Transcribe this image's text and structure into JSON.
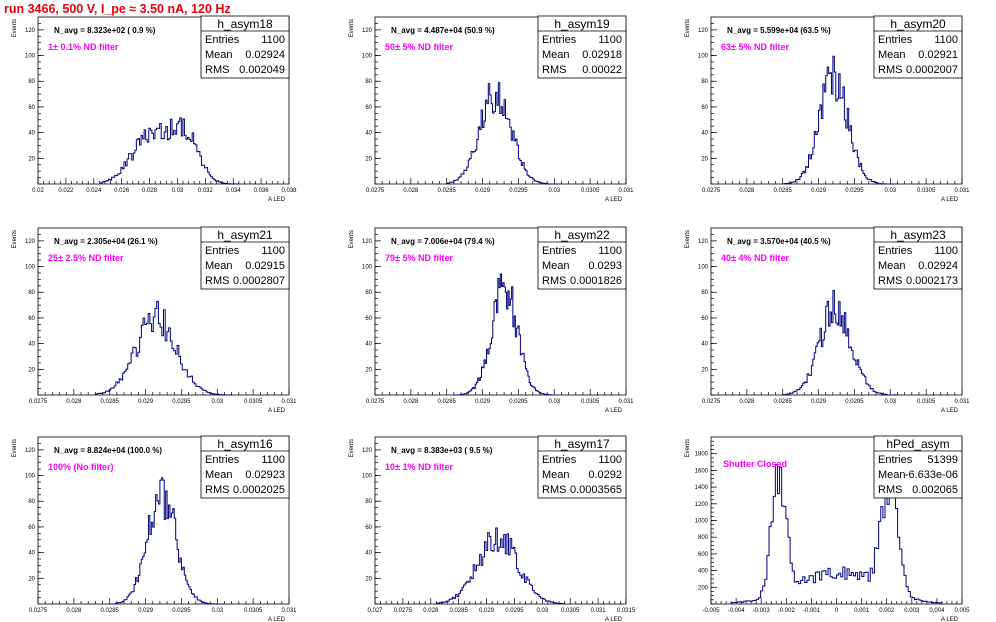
{
  "header": {
    "run_title": "run 3466,   500 V, I_pe ≈ 3.50 nA, 120 Hz"
  },
  "chart_data": [
    {
      "type": "histogram",
      "name": "h_asym18",
      "n_avg": "N_avg = 8.323e+02 ( 0.9 %)",
      "filter": "1± 0.1% ND filter",
      "entries": "1100",
      "mean": "0.02924",
      "rms": "0.002049",
      "ylabel": "Events",
      "xlabel": "A_LED",
      "xlim": [
        0.02,
        0.038
      ],
      "ylim": [
        0,
        130
      ],
      "yticks": [
        20,
        40,
        60,
        80,
        100,
        120
      ],
      "xticks": [
        "0.02",
        "0.022",
        "0.024",
        "0.026",
        "0.028",
        "0.03",
        "0.032",
        "0.034",
        "0.036",
        "0.038"
      ],
      "peaks": [
        {
          "mu": 0.028,
          "sigma": 0.0013,
          "amp": 37
        },
        {
          "mu": 0.0305,
          "sigma": 0.001,
          "amp": 38
        }
      ],
      "bins": 90,
      "range": [
        0.0245,
        0.0345
      ]
    },
    {
      "type": "histogram",
      "name": "h_asym19",
      "n_avg": "N_avg = 4.487e+04 (50.9 %)",
      "filter": "50± 5% ND filter",
      "entries": "1100",
      "mean": "0.02918",
      "rms": "0.00022",
      "ylabel": "Events",
      "xlabel": "A_LED",
      "xlim": [
        0.0275,
        0.031
      ],
      "ylim": [
        0,
        130
      ],
      "yticks": [
        20,
        40,
        60,
        80,
        100,
        120
      ],
      "xticks": [
        "0.0275",
        "0.028",
        "0.0285",
        "0.029",
        "0.0295",
        "0.03",
        "0.0305",
        "0.031"
      ],
      "peaks": [
        {
          "mu": 0.02918,
          "sigma": 0.00022,
          "amp": 70
        }
      ],
      "bins": 80,
      "range": [
        0.0285,
        0.0301
      ]
    },
    {
      "type": "histogram",
      "name": "h_asym20",
      "n_avg": "N_avg = 5.599e+04 (63.5 %)",
      "filter": "63± 5% ND filter",
      "entries": "1100",
      "mean": "0.02921",
      "rms": "0.0002007",
      "ylabel": "Events",
      "xlabel": "A_LED",
      "xlim": [
        0.0275,
        0.031
      ],
      "ylim": [
        0,
        130
      ],
      "yticks": [
        20,
        40,
        60,
        80,
        100,
        120
      ],
      "xticks": [
        "0.0275",
        "0.028",
        "0.0285",
        "0.029",
        "0.0295",
        "0.03",
        "0.0305",
        "0.031"
      ],
      "peaks": [
        {
          "mu": 0.02921,
          "sigma": 0.0002,
          "amp": 82
        }
      ],
      "bins": 80,
      "range": [
        0.0285,
        0.0301
      ]
    },
    {
      "type": "histogram",
      "name": "h_asym21",
      "n_avg": "N_avg = 2.305e+04 (26.1 %)",
      "filter": "25± 2.5% ND filter",
      "entries": "1100",
      "mean": "0.02915",
      "rms": "0.0002807",
      "ylabel": "Events",
      "xlabel": "A_LED",
      "xlim": [
        0.0275,
        0.031
      ],
      "ylim": [
        0,
        130
      ],
      "yticks": [
        20,
        40,
        60,
        80,
        100,
        120
      ],
      "xticks": [
        "0.0275",
        "0.028",
        "0.0285",
        "0.029",
        "0.0295",
        "0.03",
        "0.0305",
        "0.031"
      ],
      "peaks": [
        {
          "mu": 0.02915,
          "sigma": 0.00028,
          "amp": 60
        }
      ],
      "bins": 80,
      "range": [
        0.0283,
        0.0302
      ]
    },
    {
      "type": "histogram",
      "name": "h_asym22",
      "n_avg": "N_avg = 7.006e+04 (79.4 %)",
      "filter": "79± 5% ND filter",
      "entries": "1100",
      "mean": "0.0293",
      "rms": "0.0001826",
      "ylabel": "Events",
      "xlabel": "A_LED",
      "xlim": [
        0.0275,
        0.031
      ],
      "ylim": [
        0,
        130
      ],
      "yticks": [
        20,
        40,
        60,
        80,
        100,
        120
      ],
      "xticks": [
        "0.0275",
        "0.028",
        "0.0285",
        "0.029",
        "0.0295",
        "0.03",
        "0.0305",
        "0.031"
      ],
      "peaks": [
        {
          "mu": 0.0293,
          "sigma": 0.00018,
          "amp": 85
        }
      ],
      "bins": 80,
      "range": [
        0.0286,
        0.03
      ]
    },
    {
      "type": "histogram",
      "name": "h_asym23",
      "n_avg": "N_avg = 3.570e+04 (40.5 %)",
      "filter": "40± 4% ND filter",
      "entries": "1100",
      "mean": "0.02924",
      "rms": "0.0002173",
      "ylabel": "Events",
      "xlabel": "A_LED",
      "xlim": [
        0.0275,
        0.031
      ],
      "ylim": [
        0,
        130
      ],
      "yticks": [
        20,
        40,
        60,
        80,
        100,
        120
      ],
      "xticks": [
        "0.0275",
        "0.028",
        "0.0285",
        "0.029",
        "0.0295",
        "0.03",
        "0.0305",
        "0.031"
      ],
      "peaks": [
        {
          "mu": 0.02924,
          "sigma": 0.00022,
          "amp": 68
        }
      ],
      "bins": 80,
      "range": [
        0.0285,
        0.0301
      ]
    },
    {
      "type": "histogram",
      "name": "h_asym16",
      "n_avg": "N_avg = 8.824e+04 (100.0 %)",
      "filter": "100% (No filter)",
      "entries": "1100",
      "mean": "0.02923",
      "rms": "0.0002025",
      "ylabel": "Events",
      "xlabel": "A_LED",
      "xlim": [
        0.0275,
        0.031
      ],
      "ylim": [
        0,
        130
      ],
      "yticks": [
        20,
        40,
        60,
        80,
        100,
        120
      ],
      "xticks": [
        "0.0275",
        "0.028",
        "0.0285",
        "0.029",
        "0.0295",
        "0.03",
        "0.0305",
        "0.031"
      ],
      "peaks": [
        {
          "mu": 0.02923,
          "sigma": 0.0002,
          "amp": 85
        }
      ],
      "bins": 80,
      "range": [
        0.0285,
        0.0301
      ]
    },
    {
      "type": "histogram",
      "name": "h_asym17",
      "n_avg": "N_avg = 8.383e+03 ( 9.5 %)",
      "filter": "10± 1% ND filter",
      "entries": "1100",
      "mean": "0.0292",
      "rms": "0.0003565",
      "ylabel": "Events",
      "xlabel": "A_LED",
      "xlim": [
        0.027,
        0.0315
      ],
      "ylim": [
        0,
        130
      ],
      "yticks": [
        20,
        40,
        60,
        80,
        100,
        120
      ],
      "xticks": [
        "0.027",
        "0.0275",
        "0.028",
        "0.0285",
        "0.029",
        "0.0295",
        "0.03",
        "0.0305",
        "0.031",
        "0.0315"
      ],
      "peaks": [
        {
          "mu": 0.0292,
          "sigma": 0.00036,
          "amp": 52
        }
      ],
      "bins": 80,
      "range": [
        0.0281,
        0.0304
      ]
    },
    {
      "type": "histogram",
      "name": "hPed_asym",
      "n_avg": "",
      "filter": "Shutter Closed",
      "entries": "51399",
      "mean": "-6.633e-06",
      "rms": "0.002065",
      "ylabel": "Events",
      "xlabel": "A_LED",
      "xlim": [
        -0.005,
        0.005
      ],
      "ylim": [
        0,
        2000
      ],
      "yticks": [
        200,
        400,
        600,
        800,
        1000,
        1200,
        1400,
        1600,
        1800
      ],
      "xticks": [
        "-0.005",
        "-0.004",
        "-0.003",
        "-0.002",
        "-0.001",
        "0",
        "0.001",
        "0.002",
        "0.003",
        "0.004",
        "0.005"
      ],
      "peaks": [
        {
          "mu": -0.0023,
          "sigma": 0.00028,
          "amp": 1450
        },
        {
          "mu": 0.0021,
          "sigma": 0.00032,
          "amp": 1350
        },
        {
          "mu": 0.0,
          "sigma": 0.0016,
          "amp": 380
        }
      ],
      "bins": 100,
      "range": [
        -0.0042,
        0.0042
      ]
    }
  ]
}
